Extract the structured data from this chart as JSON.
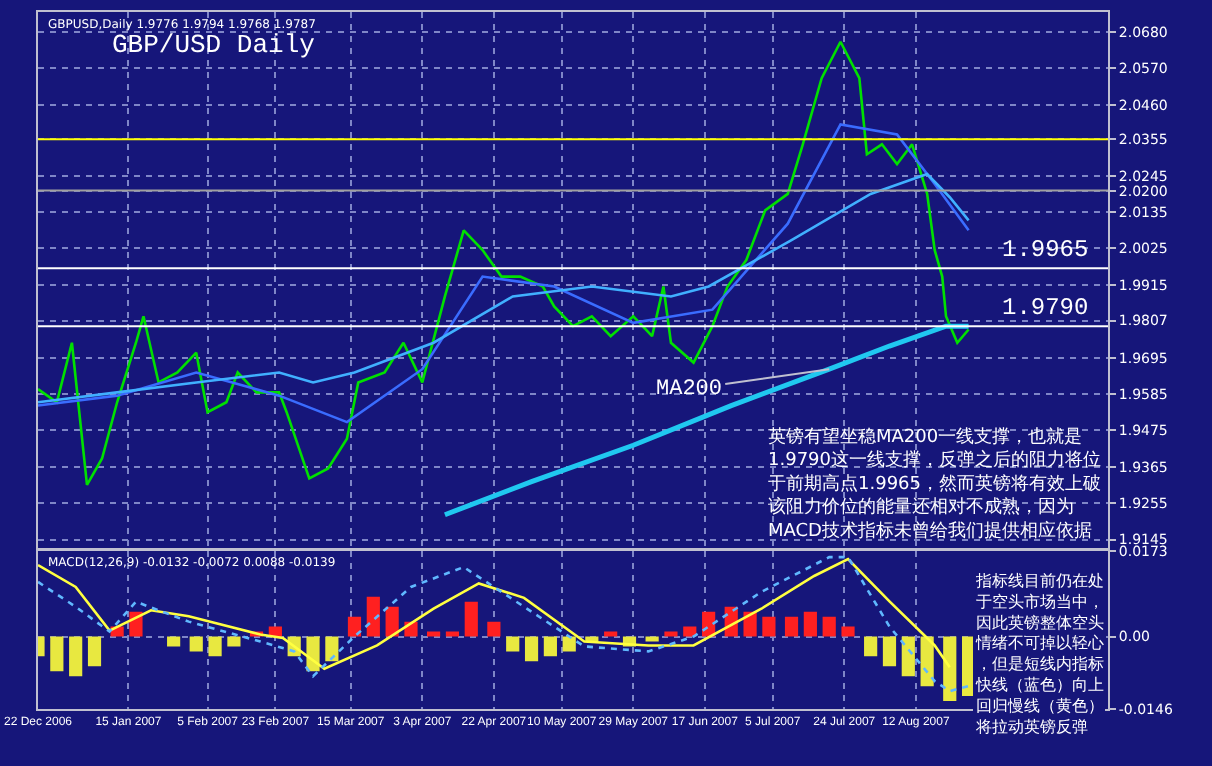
{
  "chart_data": [
    {
      "type": "line",
      "title": "GBP/USD Daily",
      "xlim": [
        "2006-12-22",
        "2007-10-02"
      ],
      "ylim": [
        1.912,
        2.074
      ],
      "tick_labels": "y",
      "grid": true,
      "xticks": [
        {
          "value": "2006-12-22",
          "label": null
        },
        {
          "value": "2007-01-15",
          "label": null
        },
        {
          "value": "2007-02-05",
          "label": null
        },
        {
          "value": "2007-02-23",
          "label": null
        },
        {
          "value": "2007-03-15",
          "label": null
        },
        {
          "value": "2007-04-03",
          "label": null
        },
        {
          "value": "2007-04-22",
          "label": null
        },
        {
          "value": "2007-05-10",
          "label": null
        },
        {
          "value": "2007-05-29",
          "label": null
        },
        {
          "value": "2007-06-17",
          "label": null
        },
        {
          "value": "2007-07-05",
          "label": null
        },
        {
          "value": "2007-07-24",
          "label": null
        },
        {
          "value": "2007-08-12",
          "label": null
        }
      ],
      "yticks": [
        {
          "value": 2.068,
          "label": "2.0680"
        },
        {
          "value": 2.057,
          "label": "2.0570"
        },
        {
          "value": 2.046,
          "label": "2.0460"
        },
        2.0355,
        2.0245,
        {
          "value": 2.02,
          "label": "2.0200"
        },
        2.0135,
        2.0025,
        1.9915,
        1.9807,
        1.9695,
        1.9585,
        1.9475,
        1.9365,
        1.9255,
        1.9145
      ],
      "series": [
        {
          "color": "#00e000",
          "x": [
            "2006-12-22",
            "2006-12-27",
            "2006-12-31",
            "2007-01-04",
            "2007-01-08",
            "2007-01-12",
            "2007-01-17",
            "2007-01-19",
            "2007-01-23",
            "2007-01-28",
            "2007-02-02",
            "2007-02-05",
            "2007-02-10",
            "2007-02-13",
            "2007-02-18",
            "2007-02-24",
            "2007-02-26",
            "2007-03-04",
            "2007-03-09",
            "2007-03-14",
            "2007-03-17",
            "2007-03-24",
            "2007-03-29",
            "2007-04-03",
            "2007-04-09",
            "2007-04-14",
            "2007-04-19",
            "2007-04-24",
            "2007-04-29",
            "2007-05-05",
            "2007-05-08",
            "2007-05-13",
            "2007-05-18",
            "2007-05-23",
            "2007-05-29",
            "2007-06-03",
            "2007-06-06",
            "2007-06-08",
            "2007-06-14",
            "2007-06-19",
            "2007-06-23",
            "2007-06-28",
            "2007-07-03",
            "2007-07-09",
            "2007-07-13",
            "2007-07-18",
            "2007-07-23",
            "2007-07-28",
            "2007-07-30",
            "2007-08-03",
            "2007-08-07",
            "2007-08-11",
            "2007-08-15",
            "2007-08-17",
            "2007-08-19",
            "2007-08-20",
            "2007-08-23",
            "2007-08-26"
          ],
          "values": [
            1.96,
            1.956,
            1.974,
            1.931,
            1.939,
            1.956,
            1.974,
            1.982,
            1.962,
            1.965,
            1.971,
            1.953,
            1.956,
            1.965,
            1.959,
            1.959,
            1.953,
            1.933,
            1.936,
            1.945,
            1.962,
            1.965,
            1.974,
            1.962,
            1.988,
            2.008,
            2.002,
            1.994,
            1.994,
            1.991,
            1.985,
            1.979,
            1.982,
            1.976,
            1.982,
            1.976,
            1.991,
            1.974,
            1.968,
            1.979,
            1.991,
            1.999,
            2.014,
            2.019,
            2.034,
            2.054,
            2.065,
            2.054,
            2.031,
            2.034,
            2.028,
            2.034,
            2.019,
            2.002,
            1.994,
            1.982,
            1.974,
            1.978
          ]
        },
        {
          "color": "#3a6cff",
          "x": [
            "2006-12-22",
            "2007-01-12",
            "2007-02-02",
            "2007-02-24",
            "2007-03-14",
            "2007-04-03",
            "2007-04-19",
            "2007-05-08",
            "2007-05-29",
            "2007-06-19",
            "2007-07-09",
            "2007-07-23",
            "2007-08-07",
            "2007-08-17",
            "2007-08-26"
          ],
          "values": [
            1.955,
            1.958,
            1.965,
            1.958,
            1.95,
            1.966,
            1.994,
            1.991,
            1.98,
            1.984,
            2.01,
            2.04,
            2.037,
            2.022,
            2.008
          ]
        },
        {
          "color": "#40b0ff",
          "x": [
            "2006-12-22",
            "2007-01-12",
            "2007-02-02",
            "2007-02-24",
            "2007-03-05",
            "2007-03-16",
            "2007-04-06",
            "2007-04-27",
            "2007-05-18",
            "2007-06-08",
            "2007-06-18",
            "2007-07-10",
            "2007-07-31",
            "2007-08-15",
            "2007-08-21",
            "2007-08-26"
          ],
          "values": [
            1.956,
            1.959,
            1.962,
            1.965,
            1.962,
            1.965,
            1.974,
            1.988,
            1.991,
            1.988,
            1.991,
            2.005,
            2.019,
            2.025,
            2.018,
            2.011
          ]
        },
        {
          "color": "#20c8f0",
          "x": [
            "2007-04-09",
            "2007-05-02",
            "2007-05-29",
            "2007-06-24",
            "2007-07-20",
            "2007-08-05",
            "2007-08-20",
            "2007-08-26"
          ],
          "values": [
            1.922,
            1.932,
            1.943,
            1.955,
            1.966,
            1.973,
            1.979,
            1.979
          ]
        }
      ],
      "ref_lines": [
        {
          "axis": "y",
          "value": 2.0355,
          "color": "#ffff00"
        },
        {
          "axis": "y",
          "value": 2.02,
          "color": "#a0a0a0"
        },
        {
          "axis": "y",
          "value": 1.9965,
          "label": "1.9965",
          "color": "#ffffff"
        },
        {
          "axis": "y",
          "value": 1.979,
          "label": "1.9790",
          "color": "#ffffff"
        }
      ],
      "annotations": [
        "GBPUSD,Daily 1.9776 1.9794 1.9768 1.9787",
        {
          "text": "MA200",
          "x": "2007-07-20",
          "y": 1.966
        },
        "英镑有望坐稳MA200一线支撑，也就是1.9790这一线支撑，反弹之后的阻力将位于前期高点1.9965，然而英镑将有效上破该阻力价位的能量还相对不成熟，因为MACD技术指标未曾给我们提供相应依据"
      ]
    },
    {
      "type": "bar",
      "xlim": [
        "2006-12-22",
        "2007-10-02"
      ],
      "ylim": [
        -0.0146,
        0.0173
      ],
      "grid": true,
      "xticks": [
        {
          "value": "2006-12-22",
          "label": "22 Dec 2006"
        },
        {
          "value": "2007-01-15",
          "label": "15 Jan 2007"
        },
        {
          "value": "2007-02-05",
          "label": "5 Feb 2007"
        },
        {
          "value": "2007-02-23",
          "label": "23 Feb 2007"
        },
        {
          "value": "2007-03-15",
          "label": "15 Mar 2007"
        },
        {
          "value": "2007-04-03",
          "label": "3 Apr 2007"
        },
        {
          "value": "2007-04-22",
          "label": "22 Apr 2007"
        },
        {
          "value": "2007-05-10",
          "label": "10 May 2007"
        },
        {
          "value": "2007-05-29",
          "label": "29 May 2007"
        },
        {
          "value": "2007-06-17",
          "label": "17 Jun 2007"
        },
        {
          "value": "2007-07-05",
          "label": "5 Jul 2007"
        },
        {
          "value": "2007-07-24",
          "label": "24 Jul 2007"
        },
        {
          "value": "2007-08-12",
          "label": "12 Aug 2007"
        }
      ],
      "yticks": [
        0.0173,
        {
          "value": 0,
          "label": "0.00"
        },
        -0.0146
      ],
      "series": [
        {
          "type": "bar",
          "x": [
            "2006-12-22",
            "2006-12-27",
            "2007-01-01",
            "2007-01-06",
            "2007-01-12",
            "2007-01-17",
            "2007-01-22",
            "2007-01-27",
            "2007-02-02",
            "2007-02-07",
            "2007-02-12",
            "2007-02-18",
            "2007-02-23",
            "2007-02-28",
            "2007-03-05",
            "2007-03-10",
            "2007-03-16",
            "2007-03-21",
            "2007-03-26",
            "2007-03-31",
            "2007-04-06",
            "2007-04-11",
            "2007-04-16",
            "2007-04-22",
            "2007-04-27",
            "2007-05-02",
            "2007-05-07",
            "2007-05-12",
            "2007-05-18",
            "2007-05-23",
            "2007-05-28",
            "2007-06-03",
            "2007-06-08",
            "2007-06-13",
            "2007-06-18",
            "2007-06-24",
            "2007-06-29",
            "2007-07-04",
            "2007-07-10",
            "2007-07-15",
            "2007-07-20",
            "2007-07-25",
            "2007-07-31",
            "2007-08-05",
            "2007-08-10",
            "2007-08-15",
            "2007-08-21",
            "2007-08-26"
          ],
          "values": [
            -0.004,
            -0.007,
            -0.008,
            -0.006,
            0.002,
            0.005,
            0.0,
            -0.002,
            -0.003,
            -0.004,
            -0.002,
            0.001,
            0.002,
            -0.004,
            -0.007,
            -0.005,
            0.004,
            0.008,
            0.006,
            0.003,
            0.001,
            0.001,
            0.007,
            0.003,
            -0.003,
            -0.005,
            -0.004,
            -0.003,
            -0.001,
            0.001,
            -0.002,
            -0.001,
            0.001,
            0.002,
            0.005,
            0.006,
            0.005,
            0.004,
            0.004,
            0.005,
            0.004,
            0.002,
            -0.004,
            -0.006,
            -0.008,
            -0.01,
            -0.013,
            -0.012
          ],
          "colors": [
            "#e8e840",
            "#e8e840",
            "#e8e840",
            "#e8e840",
            "#ff2020",
            "#ff2020",
            "#ff2020",
            "#e8e840",
            "#e8e840",
            "#e8e840",
            "#e8e840",
            "#ff2020",
            "#ff2020",
            "#e8e840",
            "#e8e840",
            "#e8e840",
            "#ff2020",
            "#ff2020",
            "#ff2020",
            "#ff2020",
            "#ff2020",
            "#ff2020",
            "#ff2020",
            "#ff2020",
            "#e8e840",
            "#e8e840",
            "#e8e840",
            "#e8e840",
            "#e8e840",
            "#ff2020",
            "#e8e840",
            "#e8e840",
            "#ff2020",
            "#ff2020",
            "#ff2020",
            "#ff2020",
            "#ff2020",
            "#ff2020",
            "#ff2020",
            "#ff2020",
            "#ff2020",
            "#ff2020",
            "#e8e840",
            "#e8e840",
            "#e8e840",
            "#e8e840",
            "#e8e840",
            "#e8e840"
          ]
        },
        {
          "type": "line",
          "color": "#ffff40",
          "line_style": "solid",
          "x": [
            "2006-12-22",
            "2007-01-01",
            "2007-01-10",
            "2007-01-21",
            "2007-01-31",
            "2007-02-19",
            "2007-02-25",
            "2007-03-08",
            "2007-03-22",
            "2007-04-06",
            "2007-04-18",
            "2007-04-30",
            "2007-05-16",
            "2007-06-02",
            "2007-06-14",
            "2007-07-02",
            "2007-07-16",
            "2007-07-25",
            "2007-08-05",
            "2007-08-17",
            "2007-08-21"
          ],
          "values": [
            0.0144,
            0.01,
            0.0012,
            0.0053,
            0.0041,
            0.0004,
            -0.0003,
            -0.0065,
            -0.0018,
            0.0056,
            0.0107,
            0.0078,
            -0.001,
            -0.0018,
            -0.0018,
            0.0056,
            0.0122,
            0.0156,
            0.0071,
            -0.0018,
            -0.0062
          ]
        },
        {
          "type": "line",
          "color": "#60b8ff",
          "line_style": "dotted",
          "x": [
            "2006-12-22",
            "2007-01-01",
            "2007-01-10",
            "2007-01-17",
            "2007-01-31",
            "2007-02-19",
            "2007-02-28",
            "2007-03-05",
            "2007-03-16",
            "2007-03-31",
            "2007-04-14",
            "2007-04-30",
            "2007-05-16",
            "2007-06-02",
            "2007-06-14",
            "2007-07-02",
            "2007-07-20",
            "2007-07-25",
            "2007-08-05",
            "2007-08-17",
            "2007-08-21",
            "2007-08-26"
          ],
          "values": [
            0.011,
            0.006,
            0.001,
            0.007,
            0.003,
            -0.001,
            -0.003,
            -0.008,
            0.0,
            0.01,
            0.014,
            0.006,
            -0.002,
            -0.003,
            0.0,
            0.009,
            0.016,
            0.016,
            0.002,
            -0.009,
            -0.011,
            -0.01
          ]
        }
      ],
      "annotations": [
        "MACD(12,26,9) -0.0132 -0.0072 0.0088 -0.0139",
        "指标线目前仍在处于空头市场当中，因此英镑整体空头情绪不可掉以轻心，但是短线内指标快线（蓝色）向上回归慢线（黄色）将拉动英镑反弹"
      ]
    }
  ]
}
